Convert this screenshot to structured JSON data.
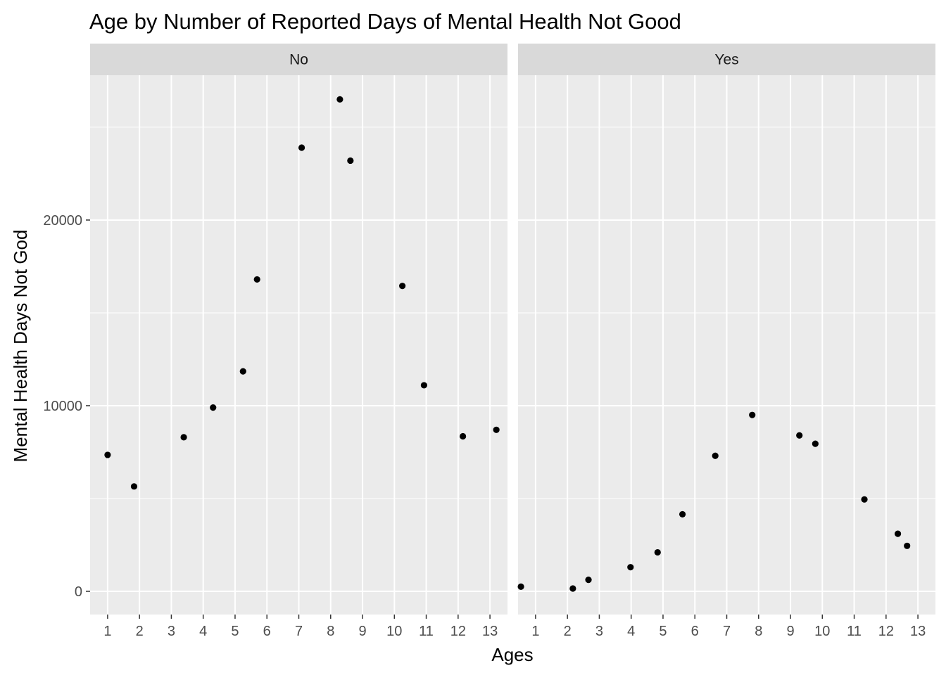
{
  "chart_data": {
    "type": "scatter",
    "title": "Age by Number of Reported Days of Mental Health Not Good",
    "xlabel": "Ages",
    "ylabel": "Mental Health Days Not God",
    "xlim": [
      0.45,
      13.55
    ],
    "ylim": [
      -1250,
      27800
    ],
    "x_ticks": [
      1,
      2,
      3,
      4,
      5,
      6,
      7,
      8,
      9,
      10,
      11,
      12,
      13
    ],
    "y_ticks": [
      0,
      10000,
      20000
    ],
    "y_minor": [
      5000,
      15000,
      25000
    ],
    "grid": true,
    "point_color": "#000000",
    "panel_bg": "#ebebeb",
    "strip_bg": "#d9d9d9",
    "facets": [
      {
        "label": "No",
        "points": [
          {
            "x": 1.0,
            "y": 7350
          },
          {
            "x": 1.83,
            "y": 5650
          },
          {
            "x": 3.39,
            "y": 8300
          },
          {
            "x": 4.31,
            "y": 9900
          },
          {
            "x": 5.25,
            "y": 11850
          },
          {
            "x": 5.69,
            "y": 16800
          },
          {
            "x": 7.09,
            "y": 23900
          },
          {
            "x": 8.29,
            "y": 26500
          },
          {
            "x": 8.62,
            "y": 23200
          },
          {
            "x": 10.25,
            "y": 16450
          },
          {
            "x": 10.93,
            "y": 11100
          },
          {
            "x": 12.15,
            "y": 8350
          },
          {
            "x": 13.2,
            "y": 8700
          }
        ]
      },
      {
        "label": "Yes",
        "points": [
          {
            "x": 0.54,
            "y": 250
          },
          {
            "x": 2.17,
            "y": 150
          },
          {
            "x": 2.66,
            "y": 620
          },
          {
            "x": 3.98,
            "y": 1300
          },
          {
            "x": 4.83,
            "y": 2100
          },
          {
            "x": 5.61,
            "y": 4150
          },
          {
            "x": 6.64,
            "y": 7300
          },
          {
            "x": 7.8,
            "y": 9500
          },
          {
            "x": 9.28,
            "y": 8400
          },
          {
            "x": 9.78,
            "y": 7950
          },
          {
            "x": 11.32,
            "y": 4950
          },
          {
            "x": 12.37,
            "y": 3100
          },
          {
            "x": 12.66,
            "y": 2450
          }
        ]
      }
    ]
  }
}
